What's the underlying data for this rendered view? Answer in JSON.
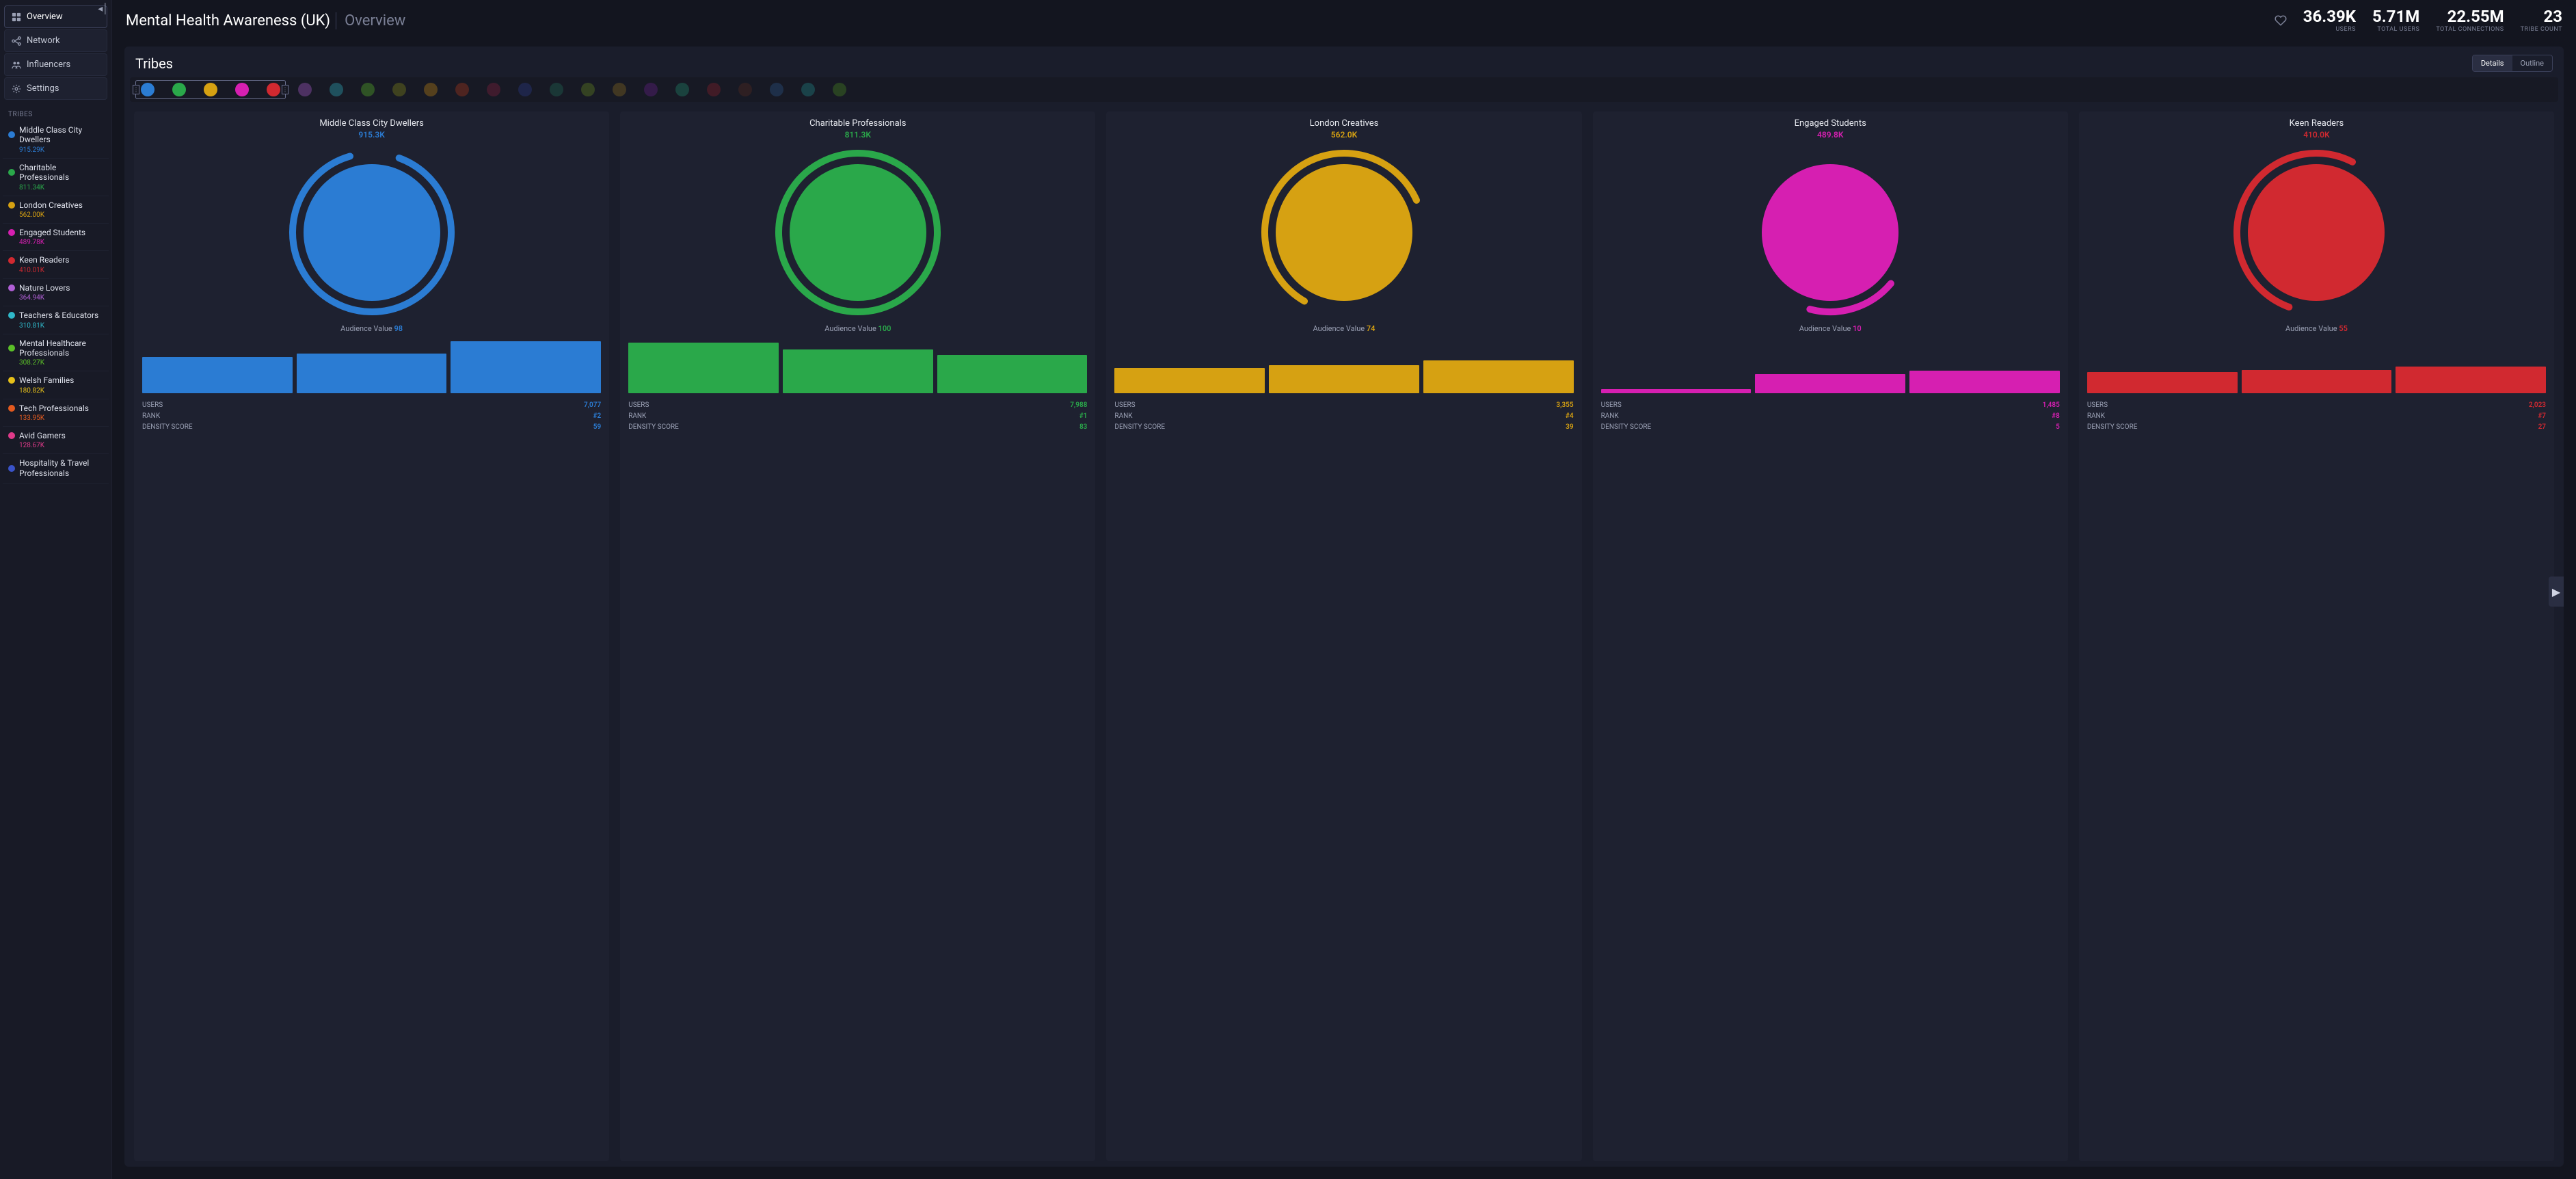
{
  "colors": {
    "bg": "#13151f",
    "panel": "#1a1d2b",
    "card": "#1e2130",
    "muted": "#7b8096",
    "text": "#e6e8ee"
  },
  "sidebar": {
    "nav": [
      {
        "label": "Overview",
        "icon": "grid",
        "active": true
      },
      {
        "label": "Network",
        "icon": "network",
        "active": false
      },
      {
        "label": "Influencers",
        "icon": "users",
        "active": false
      },
      {
        "label": "Settings",
        "icon": "gear",
        "active": false
      }
    ],
    "tribes_label": "TRIBES",
    "tribes": [
      {
        "name": "Middle Class City Dwellers",
        "value": "915.29K",
        "color": "#2b7cd3"
      },
      {
        "name": "Charitable Professionals",
        "value": "811.34K",
        "color": "#2aa84a"
      },
      {
        "name": "London Creatives",
        "value": "562.00K",
        "color": "#d6a112"
      },
      {
        "name": "Engaged Students",
        "value": "489.78K",
        "color": "#d61fb1"
      },
      {
        "name": "Keen Readers",
        "value": "410.01K",
        "color": "#d12930"
      },
      {
        "name": "Nature Lovers",
        "value": "364.94K",
        "color": "#b15fd6"
      },
      {
        "name": "Teachers & Educators",
        "value": "310.81K",
        "color": "#2fb8c9"
      },
      {
        "name": "Mental Healthcare Professionals",
        "value": "308.27K",
        "color": "#5bbf28"
      },
      {
        "name": "Welsh Families",
        "value": "180.82K",
        "color": "#e6c019"
      },
      {
        "name": "Tech Professionals",
        "value": "133.95K",
        "color": "#e35a1f"
      },
      {
        "name": "Avid Gamers",
        "value": "128.67K",
        "color": "#e03a8a"
      },
      {
        "name": "Hospitality & Travel Professionals",
        "value": "",
        "color": "#3a53c9"
      }
    ]
  },
  "header": {
    "title": "Mental Health Awareness (UK)",
    "subtitle": "Overview",
    "stats": [
      {
        "value": "36.39K",
        "label": "USERS"
      },
      {
        "value": "5.71M",
        "label": "TOTAL USERS"
      },
      {
        "value": "22.55M",
        "label": "TOTAL CONNECTIONS"
      },
      {
        "value": "23",
        "label": "TRIBE COUNT"
      }
    ]
  },
  "panel": {
    "title": "Tribes",
    "toggle": {
      "a": "Details",
      "b": "Outline",
      "active": "a"
    },
    "strip_colors": [
      "#2b7cd3",
      "#2aa84a",
      "#d6a112",
      "#d61fb1",
      "#d12930",
      "#b15fd6",
      "#2fb8c9",
      "#5bbf28",
      "#8a8f18",
      "#c98a12",
      "#b53a1a",
      "#8a1f3f",
      "#2a3c8f",
      "#1f6f5a",
      "#6a8f1f",
      "#8f6f1f",
      "#6a1f8f",
      "#1f8f6f",
      "#8f1f2a",
      "#5a2a1f",
      "#2a5a8f",
      "#1f8f8f",
      "#4a8f1f"
    ],
    "selected_count": 5,
    "aud_label": "Audience Value",
    "stat_labels": {
      "users": "USERS",
      "rank": "RANK",
      "density": "DENSITY SCORE"
    },
    "cards": [
      {
        "title": "Middle Class City Dwellers",
        "value": "915.3K",
        "color": "#2b7cd3",
        "ring_pct": 90,
        "audience_value": "98",
        "bars": [
          68,
          74,
          98
        ],
        "users": "7,077",
        "rank": "#2",
        "density": "59"
      },
      {
        "title": "Charitable Professionals",
        "value": "811.3K",
        "color": "#2aa84a",
        "ring_pct": 100,
        "audience_value": "100",
        "bars": [
          95,
          82,
          72
        ],
        "users": "7,988",
        "rank": "#1",
        "density": "83"
      },
      {
        "title": "London Creatives",
        "value": "562.0K",
        "color": "#d6a112",
        "ring_pct": 60,
        "audience_value": "74",
        "bars": [
          48,
          52,
          62
        ],
        "users": "3,355",
        "rank": "#4",
        "density": "39"
      },
      {
        "title": "Engaged Students",
        "value": "489.8K",
        "color": "#d61fb1",
        "ring_pct": 18,
        "audience_value": "10",
        "bars": [
          8,
          36,
          42
        ],
        "users": "1,485",
        "rank": "#8",
        "density": "5"
      },
      {
        "title": "Keen Readers",
        "value": "410.0K",
        "color": "#d12930",
        "ring_pct": 52,
        "audience_value": "55",
        "bars": [
          40,
          44,
          50
        ],
        "users": "2,023",
        "rank": "#7",
        "density": "27"
      }
    ]
  }
}
